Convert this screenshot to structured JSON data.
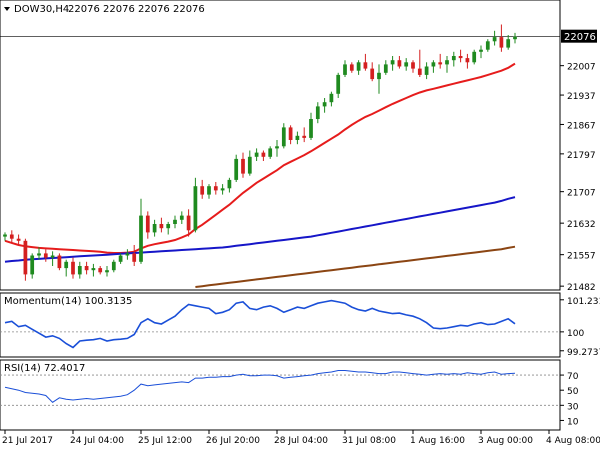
{
  "chart_data": [
    {
      "panel": "price",
      "type": "candlestick",
      "header": {
        "symbol": "DOW30,H4",
        "ohlc_text": "22076 22076 22076 22076"
      },
      "ylim": [
        21480,
        22130
      ],
      "y_ticks": [
        22007,
        21937,
        21867,
        21797,
        21707,
        21632,
        21557,
        21482
      ],
      "current_price": "22076",
      "x_ticks": [
        "21 Jul 2017",
        "24 Jul 04:00",
        "25 Jul 12:00",
        "26 Jul 20:00",
        "28 Jul 04:00",
        "31 Jul 08:00",
        "1 Aug 16:00",
        "3 Aug 00:00",
        "4 Aug 08:00"
      ],
      "x_tick_index": [
        0,
        10,
        20,
        30,
        40,
        50,
        60,
        70,
        80
      ],
      "candles": [
        [
          21600,
          21610,
          21590,
          21605
        ],
        [
          21605,
          21615,
          21585,
          21595
        ],
        [
          21595,
          21605,
          21580,
          21590
        ],
        [
          21590,
          21595,
          21495,
          21510
        ],
        [
          21510,
          21560,
          21500,
          21555
        ],
        [
          21555,
          21575,
          21545,
          21560
        ],
        [
          21560,
          21570,
          21540,
          21550
        ],
        [
          21550,
          21565,
          21530,
          21555
        ],
        [
          21555,
          21560,
          21520,
          21525
        ],
        [
          21525,
          21545,
          21505,
          21540
        ],
        [
          21540,
          21550,
          21500,
          21510
        ],
        [
          21510,
          21540,
          21500,
          21530
        ],
        [
          21530,
          21540,
          21510,
          21520
        ],
        [
          21520,
          21535,
          21505,
          21525
        ],
        [
          21525,
          21530,
          21510,
          21515
        ],
        [
          21515,
          21530,
          21505,
          21520
        ],
        [
          21520,
          21545,
          21515,
          21540
        ],
        [
          21540,
          21560,
          21535,
          21555
        ],
        [
          21555,
          21570,
          21545,
          21560
        ],
        [
          21560,
          21580,
          21530,
          21540
        ],
        [
          21540,
          21690,
          21535,
          21650
        ],
        [
          21650,
          21660,
          21595,
          21610
        ],
        [
          21610,
          21640,
          21600,
          21630
        ],
        [
          21630,
          21645,
          21610,
          21620
        ],
        [
          21620,
          21635,
          21605,
          21630
        ],
        [
          21630,
          21650,
          21620,
          21640
        ],
        [
          21640,
          21660,
          21630,
          21650
        ],
        [
          21650,
          21665,
          21600,
          21615
        ],
        [
          21615,
          21740,
          21610,
          21720
        ],
        [
          21720,
          21735,
          21690,
          21700
        ],
        [
          21700,
          21725,
          21690,
          21720
        ],
        [
          21720,
          21730,
          21700,
          21710
        ],
        [
          21710,
          21725,
          21700,
          21715
        ],
        [
          21715,
          21740,
          21705,
          21735
        ],
        [
          21735,
          21795,
          21730,
          21785
        ],
        [
          21785,
          21800,
          21740,
          21750
        ],
        [
          21750,
          21805,
          21745,
          21790
        ],
        [
          21790,
          21810,
          21780,
          21800
        ],
        [
          21800,
          21805,
          21780,
          21790
        ],
        [
          21790,
          21815,
          21785,
          21810
        ],
        [
          21810,
          21830,
          21790,
          21815
        ],
        [
          21815,
          21870,
          21810,
          21860
        ],
        [
          21860,
          21865,
          21820,
          21830
        ],
        [
          21830,
          21850,
          21820,
          21840
        ],
        [
          21840,
          21860,
          21825,
          21835
        ],
        [
          21835,
          21895,
          21830,
          21880
        ],
        [
          21880,
          21920,
          21870,
          21910
        ],
        [
          21910,
          21930,
          21895,
          21920
        ],
        [
          21920,
          21945,
          21910,
          21940
        ],
        [
          21940,
          21990,
          21930,
          21985
        ],
        [
          21985,
          22020,
          21980,
          22010
        ],
        [
          22010,
          22015,
          21990,
          21995
        ],
        [
          21995,
          22020,
          21985,
          22015
        ],
        [
          22015,
          22035,
          21995,
          22000
        ],
        [
          22000,
          22015,
          21970,
          21975
        ],
        [
          21975,
          22010,
          21940,
          21990
        ],
        [
          21990,
          22020,
          21985,
          22010
        ],
        [
          22010,
          22030,
          21995,
          22020
        ],
        [
          22020,
          22030,
          22000,
          22005
        ],
        [
          22005,
          22025,
          21995,
          22015
        ],
        [
          22015,
          22020,
          21990,
          22000
        ],
        [
          22000,
          22045,
          21980,
          21985
        ],
        [
          21985,
          22015,
          21975,
          22005
        ],
        [
          22005,
          22020,
          21990,
          22015
        ],
        [
          22015,
          22035,
          22000,
          22010
        ],
        [
          22010,
          22030,
          21990,
          22020
        ],
        [
          22020,
          22040,
          22005,
          22030
        ],
        [
          22030,
          22045,
          22015,
          22025
        ],
        [
          22025,
          22035,
          22000,
          22015
        ],
        [
          22015,
          22045,
          22010,
          22040
        ],
        [
          22040,
          22055,
          22025,
          22045
        ],
        [
          22045,
          22070,
          22040,
          22065
        ],
        [
          22065,
          22090,
          22055,
          22075
        ],
        [
          22075,
          22105,
          22040,
          22050
        ],
        [
          22050,
          22080,
          22045,
          22070
        ],
        [
          22070,
          22085,
          22060,
          22076
        ]
      ],
      "sma_1": [
        21590,
        21585,
        21580,
        21577,
        21575,
        21573,
        21572,
        21571,
        21570,
        21569,
        21568,
        21567,
        21566,
        21565,
        21564,
        21562,
        21561,
        21561,
        21562,
        21564,
        21572,
        21578,
        21582,
        21585,
        21588,
        21592,
        21598,
        21605,
        21618,
        21628,
        21640,
        21652,
        21664,
        21676,
        21690,
        21704,
        21716,
        21728,
        21738,
        21748,
        21758,
        21770,
        21778,
        21786,
        21794,
        21803,
        21813,
        21823,
        21833,
        21843,
        21855,
        21866,
        21876,
        21885,
        21892,
        21900,
        21908,
        21916,
        21923,
        21930,
        21937,
        21943,
        21948,
        21952,
        21956,
        21960,
        21964,
        21968,
        21972,
        21976,
        21980,
        21985,
        21990,
        21995,
        22002,
        22012
      ],
      "sma_2": [
        21540,
        21542,
        21543,
        21545,
        21546,
        21547,
        21548,
        21549,
        21550,
        21551,
        21552,
        21553,
        21554,
        21555,
        21556,
        21557,
        21558,
        21559,
        21560,
        21561,
        21562,
        21563,
        21564,
        21565,
        21566,
        21567,
        21568,
        21569,
        21570,
        21571,
        21572,
        21573,
        21574,
        21576,
        21578,
        21580,
        21582,
        21584,
        21586,
        21588,
        21590,
        21592,
        21594,
        21596,
        21598,
        21600,
        21603,
        21606,
        21609,
        21612,
        21615,
        21618,
        21621,
        21624,
        21627,
        21630,
        21633,
        21636,
        21639,
        21642,
        21645,
        21648,
        21651,
        21654,
        21657,
        21660,
        21663,
        21666,
        21669,
        21672,
        21675,
        21678,
        21681,
        21685,
        21690,
        21694
      ],
      "sma_3": [
        null,
        null,
        null,
        null,
        null,
        null,
        null,
        null,
        null,
        null,
        null,
        null,
        null,
        null,
        null,
        null,
        null,
        null,
        null,
        null,
        null,
        null,
        null,
        null,
        null,
        null,
        null,
        null,
        21480,
        21482,
        21484,
        21486,
        21488,
        21490,
        21492,
        21494,
        21496,
        21498,
        21500,
        21502,
        21504,
        21506,
        21508,
        21510,
        21512,
        21514,
        21516,
        21518,
        21520,
        21522,
        21524,
        21526,
        21528,
        21530,
        21532,
        21534,
        21536,
        21538,
        21540,
        21542,
        21544,
        21546,
        21548,
        21550,
        21552,
        21554,
        21556,
        21558,
        21560,
        21562,
        21564,
        21566,
        21568,
        21570,
        21573,
        21576
      ],
      "colors": {
        "up": "#1f8a1f",
        "down": "#d42020",
        "sma_1": "#e61c1c",
        "sma_2": "#1616c8",
        "sma_3": "#8b4513",
        "grid": "#000000"
      }
    },
    {
      "panel": "momentum",
      "type": "line",
      "title": "Momentum(14) 100.3135",
      "ylim": [
        99.15,
        101.3
      ],
      "y_ticks": [
        "101.2312",
        "100",
        "99.2737"
      ],
      "y_tick_values": [
        101.2312,
        100,
        99.2737
      ],
      "reference_level": 100,
      "color": "#1a4fd8",
      "values": [
        100.35,
        100.4,
        100.2,
        100.25,
        100.1,
        99.95,
        99.8,
        99.85,
        99.75,
        99.55,
        99.4,
        99.65,
        99.68,
        99.7,
        99.75,
        99.65,
        99.7,
        99.72,
        99.75,
        99.9,
        100.35,
        100.5,
        100.35,
        100.3,
        100.45,
        100.6,
        100.85,
        101.05,
        101.0,
        100.95,
        100.9,
        100.7,
        100.75,
        100.85,
        101.1,
        101.15,
        100.9,
        100.85,
        100.95,
        101.0,
        100.9,
        100.75,
        100.85,
        100.95,
        100.9,
        101.0,
        101.1,
        101.15,
        101.2,
        101.15,
        101.1,
        100.95,
        100.85,
        100.8,
        100.9,
        100.8,
        100.75,
        100.7,
        100.72,
        100.65,
        100.6,
        100.5,
        100.35,
        100.15,
        100.12,
        100.15,
        100.2,
        100.25,
        100.22,
        100.3,
        100.35,
        100.28,
        100.3,
        100.4,
        100.5,
        100.31
      ]
    },
    {
      "panel": "rsi",
      "type": "line",
      "title": "RSI(14) 72.4017",
      "ylim": [
        0,
        82
      ],
      "y_ticks": [
        "70",
        "50",
        "30",
        "10"
      ],
      "y_tick_values": [
        70,
        50,
        30,
        10
      ],
      "levels": [
        70,
        30
      ],
      "color": "#1a4fd8",
      "values": [
        54,
        52,
        50,
        47,
        46,
        45,
        43,
        34,
        40,
        38,
        37,
        38,
        39,
        38,
        39,
        40,
        41,
        42,
        44,
        50,
        58,
        56,
        57,
        58,
        59,
        60,
        61,
        60,
        66,
        66,
        67,
        67,
        68,
        68,
        70,
        71,
        69,
        69,
        70,
        70,
        69,
        66,
        67,
        68,
        69,
        70,
        72,
        73,
        74,
        76,
        76,
        75,
        74,
        74,
        73,
        72,
        72,
        74,
        74,
        73,
        72,
        71,
        70,
        71,
        72,
        71,
        72,
        71,
        73,
        72,
        71,
        73,
        74,
        71,
        72,
        72.4
      ]
    }
  ]
}
